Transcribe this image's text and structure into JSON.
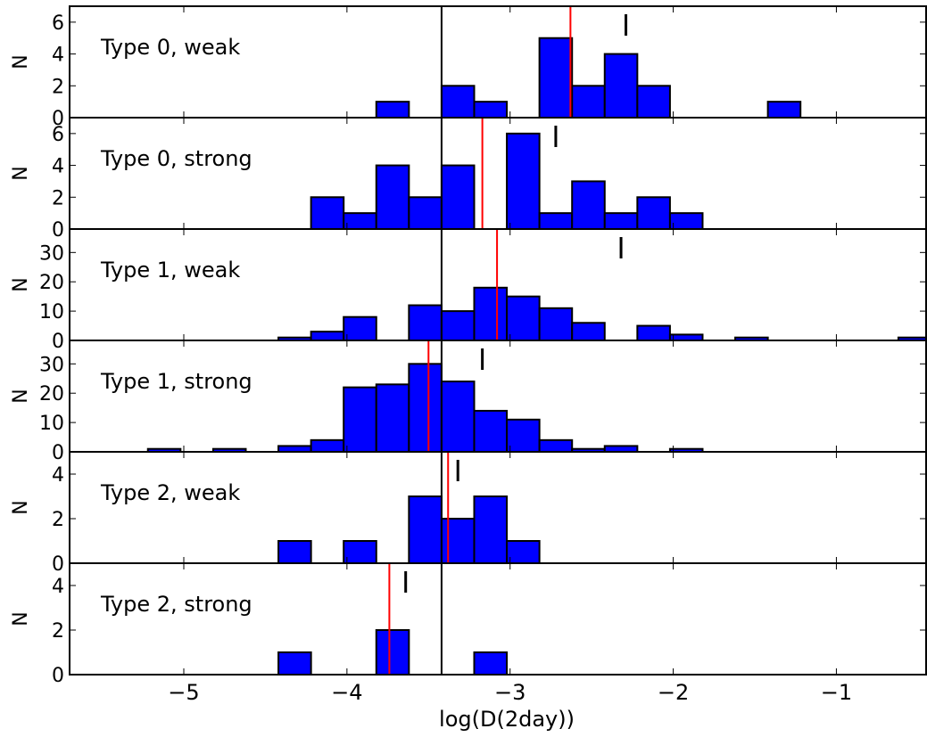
{
  "chart_data": {
    "type": "histogram",
    "xlabel": "log(D(2day))",
    "ylabel": "N",
    "xlim": [
      -5.7,
      -0.45
    ],
    "xticks": [
      -5,
      -4,
      -3,
      -2,
      -1
    ],
    "xtick_labels": [
      "−5",
      "−4",
      "−3",
      "−2",
      "−1"
    ],
    "bin_width": 0.2,
    "reference_line_x": -3.42,
    "colors": {
      "bars": "#0000ff",
      "median_line": "#ff0000",
      "reference_line": "#000000",
      "marker": "#000000"
    },
    "panels": [
      {
        "label": "Type 0, weak",
        "ylim": [
          0,
          7
        ],
        "yticks": [
          0,
          2,
          4,
          6
        ],
        "bin_starts": [
          -3.82,
          -3.42,
          -3.22,
          -2.82,
          -2.62,
          -2.42,
          -2.22,
          -1.42
        ],
        "counts": [
          1,
          2,
          1,
          5,
          2,
          4,
          2,
          1
        ],
        "median": -2.63,
        "marker_x": -2.29
      },
      {
        "label": "Type 0, strong",
        "ylim": [
          0,
          7
        ],
        "yticks": [
          0,
          2,
          4,
          6
        ],
        "bin_starts": [
          -4.22,
          -4.02,
          -3.82,
          -3.62,
          -3.42,
          -3.02,
          -2.82,
          -2.62,
          -2.42,
          -2.22,
          -2.02
        ],
        "counts": [
          2,
          1,
          4,
          2,
          4,
          6,
          1,
          3,
          1,
          2,
          1
        ],
        "median": -3.17,
        "marker_x": -2.72
      },
      {
        "label": "Type 1, weak",
        "ylim": [
          0,
          38
        ],
        "yticks": [
          0,
          10,
          20,
          30
        ],
        "bin_starts": [
          -4.42,
          -4.22,
          -4.02,
          -3.62,
          -3.42,
          -3.22,
          -3.02,
          -2.82,
          -2.62,
          -2.22,
          -2.02,
          -1.62,
          -0.62
        ],
        "counts": [
          1,
          3,
          8,
          12,
          10,
          18,
          15,
          11,
          6,
          5,
          2,
          1,
          1
        ],
        "median": -3.08,
        "marker_x": -2.32
      },
      {
        "label": "Type 1, strong",
        "ylim": [
          0,
          38
        ],
        "yticks": [
          0,
          10,
          20,
          30
        ],
        "bin_starts": [
          -5.22,
          -4.82,
          -4.42,
          -4.22,
          -4.02,
          -3.82,
          -3.62,
          -3.42,
          -3.22,
          -3.02,
          -2.82,
          -2.62,
          -2.42,
          -2.02
        ],
        "counts": [
          1,
          1,
          2,
          4,
          22,
          23,
          30,
          24,
          14,
          11,
          4,
          1,
          2,
          1
        ],
        "median": -3.5,
        "marker_x": -3.17
      },
      {
        "label": "Type 2, weak",
        "ylim": [
          0,
          5
        ],
        "yticks": [
          0,
          2,
          4
        ],
        "bin_starts": [
          -4.42,
          -4.02,
          -3.62,
          -3.42,
          -3.22,
          -3.02
        ],
        "counts": [
          1,
          1,
          3,
          2,
          3,
          1
        ],
        "median": -3.38,
        "marker_x": -3.32
      },
      {
        "label": "Type 2, strong",
        "ylim": [
          0,
          5
        ],
        "yticks": [
          0,
          2,
          4
        ],
        "bin_starts": [
          -4.42,
          -3.82,
          -3.22
        ],
        "counts": [
          1,
          2,
          1
        ],
        "median": -3.74,
        "marker_x": -3.64
      }
    ]
  }
}
